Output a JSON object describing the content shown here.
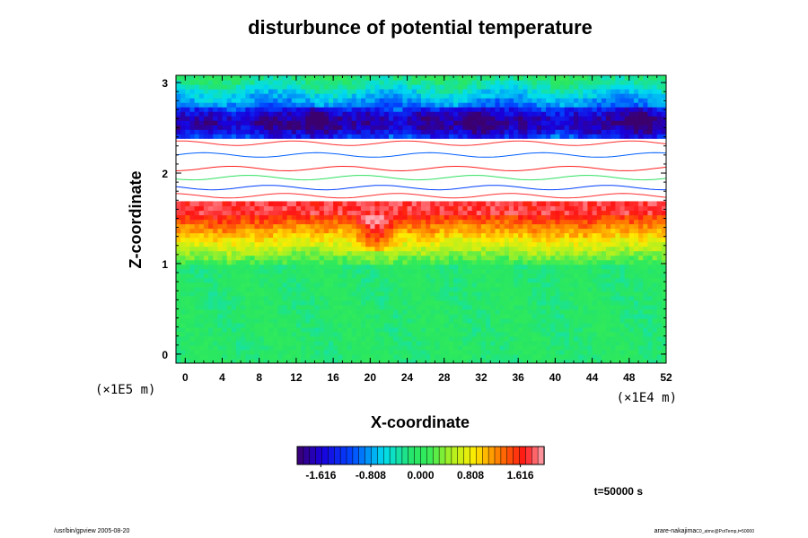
{
  "chart_data": {
    "type": "heatmap",
    "title": "disturbunce of potential temperature",
    "xlabel": "X-coordinate",
    "ylabel": "Z-coordinate",
    "x_scale_label": "(×1E4 m)",
    "y_scale_label": "(×1E5 m)",
    "xlim": [
      -1,
      52
    ],
    "ylim": [
      -0.1,
      3.08
    ],
    "x_ticks": [
      "0",
      "4",
      "8",
      "12",
      "16",
      "20",
      "24",
      "28",
      "32",
      "36",
      "40",
      "44",
      "48",
      "52"
    ],
    "x_tick_values": [
      0,
      4,
      8,
      12,
      16,
      20,
      24,
      28,
      32,
      36,
      40,
      44,
      48,
      52
    ],
    "y_ticks": [
      "0",
      "1",
      "2",
      "3"
    ],
    "y_tick_values": [
      0,
      1,
      2,
      3
    ],
    "colorbar": {
      "range": [
        -2.0,
        2.0
      ],
      "tick_labels": [
        "-1.616",
        "-0.808",
        "0.000",
        "0.808",
        "1.616"
      ],
      "tick_values": [
        -1.616,
        -0.808,
        0.0,
        0.808,
        1.616
      ],
      "levels": 40
    },
    "field_bands": [
      {
        "z": [
          -0.1,
          1.0
        ],
        "value": 0.0
      },
      {
        "z": [
          1.0,
          1.3
        ],
        "value": 0.55
      },
      {
        "z": [
          1.3,
          1.6
        ],
        "value": 1.55
      },
      {
        "z": [
          1.6,
          1.7
        ],
        "value": "out_of_range_high"
      },
      {
        "z": [
          1.7,
          2.4
        ],
        "value": "out_of_range"
      },
      {
        "z": [
          2.4,
          2.75
        ],
        "value": -1.7
      },
      {
        "z": [
          2.75,
          3.08
        ],
        "value": -0.9
      }
    ],
    "time_label": "t=50000 s"
  },
  "footer": {
    "left": "/usr/bin/gpview 2005-08-20",
    "right_main": "arare-nakajima",
    "right_sub": "C0_atmo@PotTemp,t=50000"
  },
  "colors": {
    "neutral": "#33ee66",
    "warm": "#ff2a1a",
    "cold": "#0a2fcc",
    "frame": "#000000"
  }
}
